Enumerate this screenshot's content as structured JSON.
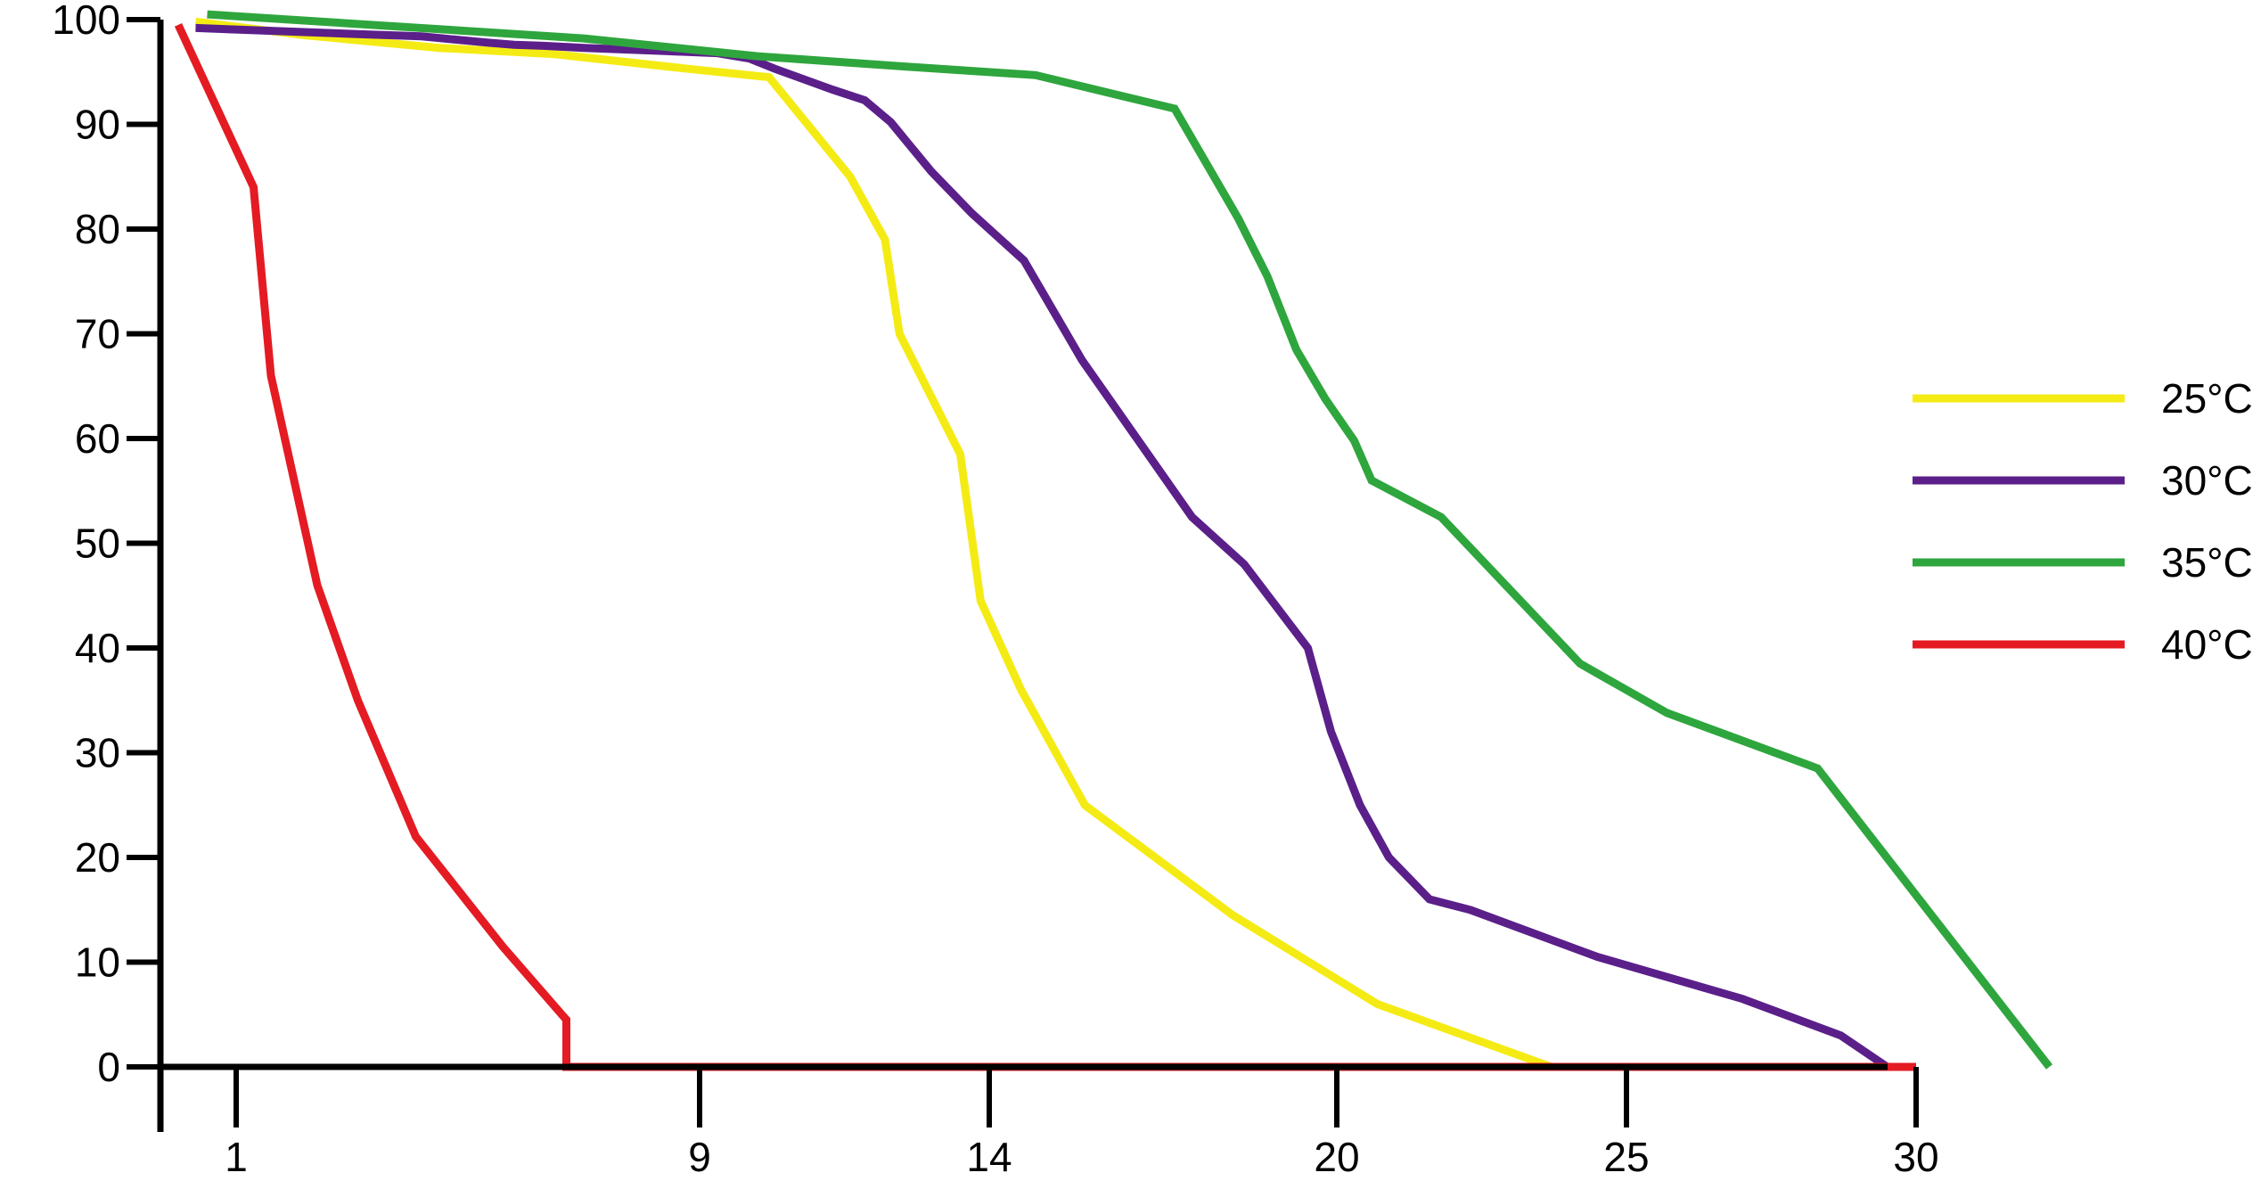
{
  "chart_data": {
    "type": "line",
    "title": "",
    "xlabel": "",
    "ylabel": "",
    "xlim": [
      0,
      30
    ],
    "ylim": [
      0,
      100
    ],
    "x_ticks": [
      {
        "value": 1,
        "label": "1"
      },
      {
        "value": 9,
        "label": "9"
      },
      {
        "value": 14,
        "label": "14"
      },
      {
        "value": 20,
        "label": "20"
      },
      {
        "value": 25,
        "label": "25"
      },
      {
        "value": 30,
        "label": "30"
      }
    ],
    "y_ticks": [
      {
        "value": 0,
        "label": "0"
      },
      {
        "value": 10,
        "label": "10"
      },
      {
        "value": 20,
        "label": "20"
      },
      {
        "value": 30,
        "label": "30"
      },
      {
        "value": 40,
        "label": "40"
      },
      {
        "value": 50,
        "label": "50"
      },
      {
        "value": 60,
        "label": "60"
      },
      {
        "value": 70,
        "label": "70"
      },
      {
        "value": 80,
        "label": "80"
      },
      {
        "value": 90,
        "label": "90"
      },
      {
        "value": 100,
        "label": "100"
      }
    ],
    "grid": false,
    "legend_position": "right",
    "series": [
      {
        "name": "25°C",
        "color": "#f5eb14",
        "x": [
          0.3,
          2.2,
          4.5,
          6.5,
          8.8,
          10.2,
          11.6,
          12.2,
          12.45,
          13.5,
          13.85,
          14.55,
          15.65,
          18.2,
          20.7,
          23.7
        ],
        "y": [
          99.8,
          98.5,
          97.3,
          96.7,
          95.3,
          94.5,
          85,
          79,
          70,
          58.5,
          44.5,
          36,
          25,
          14.5,
          6,
          0
        ]
      },
      {
        "name": "30°C",
        "color": "#5b1f8a",
        "x": [
          0.3,
          3.2,
          4.2,
          5.35,
          5.8,
          6.3,
          7.0,
          8.4,
          9.3,
          9.85,
          10.3,
          11.3,
          11.85,
          12.3,
          13.0,
          13.7,
          14.6,
          15.6,
          17.5,
          18.4,
          19.5,
          19.9,
          20.4,
          20.9,
          21.6,
          22.3,
          24.5,
          27.0,
          28.7,
          29.5
        ],
        "y": [
          99.2,
          98.6,
          98.4,
          97.8,
          97.6,
          97.5,
          97.3,
          97,
          96.8,
          96.3,
          95.3,
          93.3,
          92.3,
          90.2,
          85.5,
          81.5,
          77,
          67.5,
          52.5,
          48,
          40,
          32,
          25,
          20,
          16,
          15,
          10.5,
          6.5,
          3,
          0
        ]
      },
      {
        "name": "35°C",
        "color": "#2ea63d",
        "x": [
          0.5,
          7.0,
          10.0,
          12.6,
          14.8,
          17.2,
          18.3,
          18.8,
          19.3,
          19.8,
          20.3,
          20.6,
          21.8,
          24.2,
          25.7,
          28.3,
          32.3
        ],
        "y": [
          100.5,
          98.2,
          96.5,
          95.5,
          94.7,
          91.5,
          81,
          75.5,
          68.5,
          63.8,
          59.8,
          56,
          52.5,
          38.5,
          33.8,
          28.5,
          0
        ]
      },
      {
        "name": "40°C",
        "color": "#e41b23",
        "x": [
          0.0,
          1.3,
          1.6,
          2.4,
          3.1,
          4.1,
          5.6,
          6.7,
          6.7,
          6.75,
          30.0
        ],
        "y": [
          99.5,
          84,
          66,
          46,
          35,
          22,
          11.5,
          4.5,
          0,
          0,
          0
        ]
      }
    ]
  }
}
